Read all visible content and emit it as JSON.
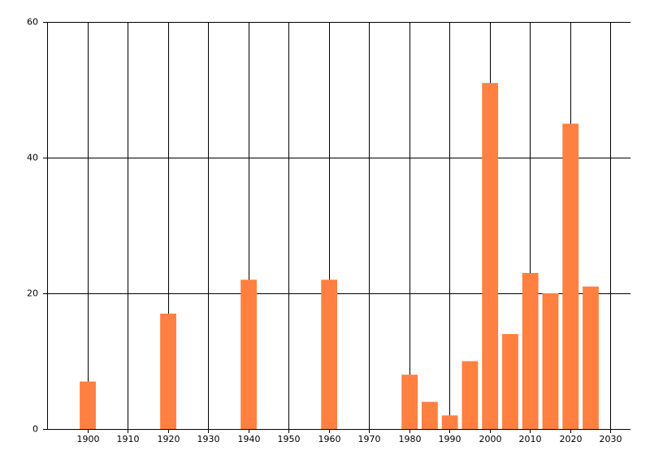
{
  "chart_data": {
    "type": "bar",
    "x": [
      1900,
      1920,
      1940,
      1960,
      1980,
      1985,
      1990,
      1995,
      2000,
      2005,
      2010,
      2015,
      2020,
      2025
    ],
    "values": [
      7,
      17,
      22,
      22,
      8,
      4,
      2,
      10,
      51,
      14,
      23,
      20,
      45,
      21
    ],
    "color": "#ff8040",
    "xlim": [
      1890,
      2035
    ],
    "xticks": [
      1900,
      1910,
      1920,
      1930,
      1940,
      1950,
      1960,
      1970,
      1980,
      1990,
      2000,
      2010,
      2020,
      2030
    ],
    "ylim": [
      0,
      60
    ],
    "yticks": [
      0,
      20,
      40,
      60
    ],
    "grid": true
  }
}
